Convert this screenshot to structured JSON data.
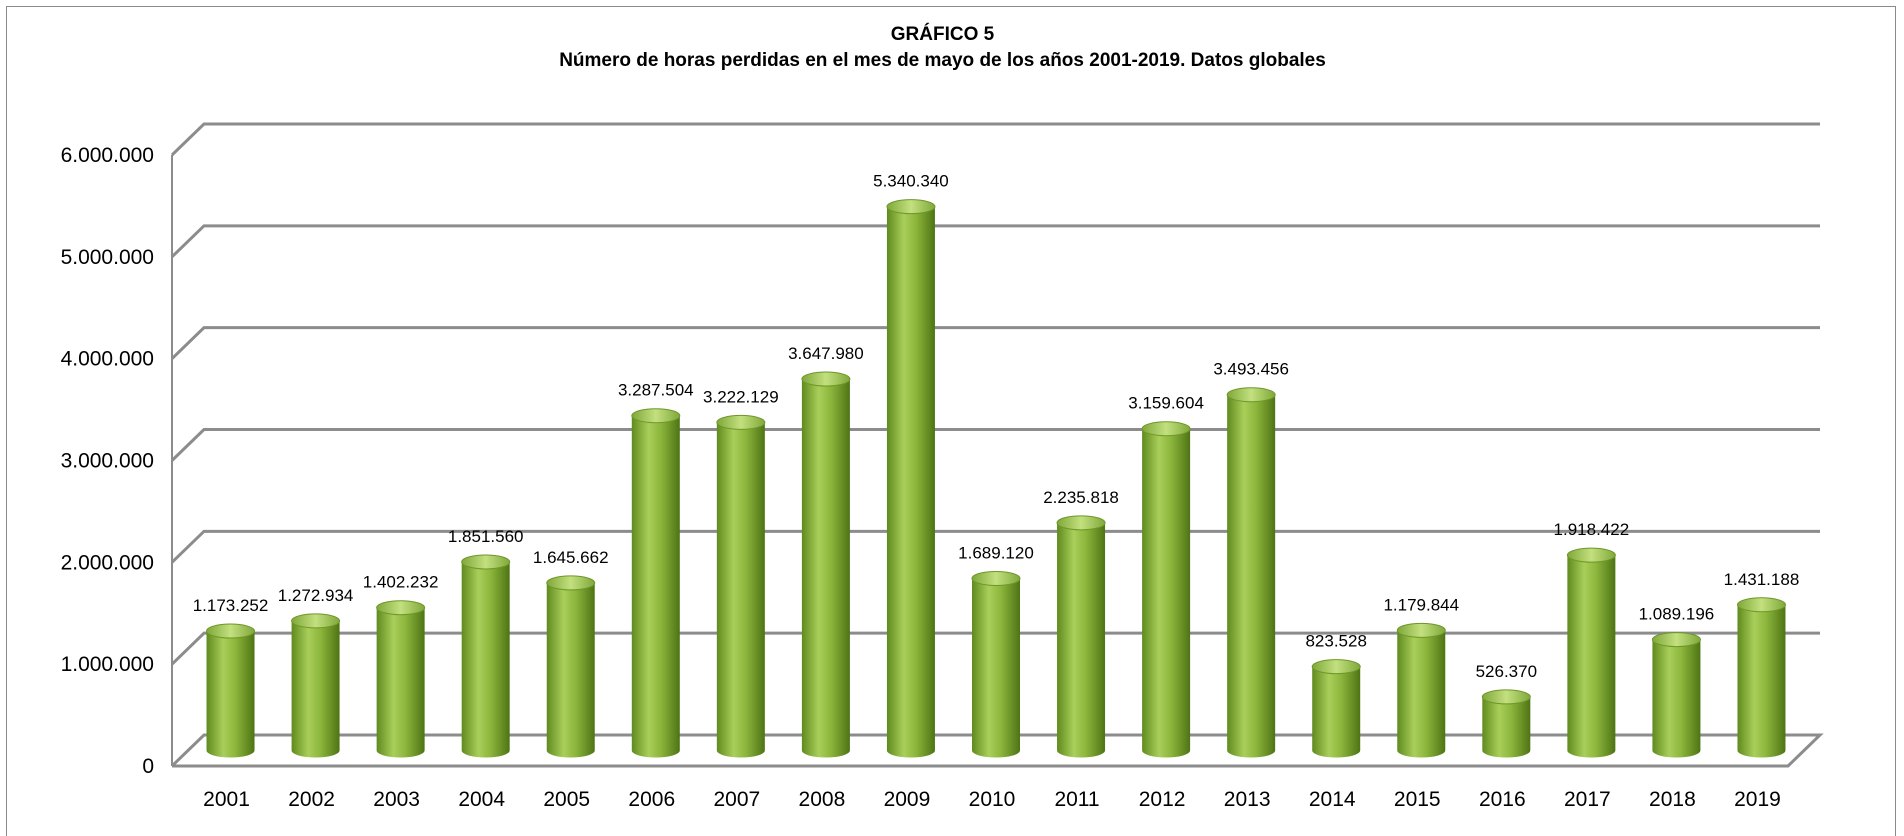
{
  "chart_data": {
    "type": "bar",
    "title": "GRÁFICO 5",
    "subtitle": "Número de horas  perdidas en el mes de mayo de los años 2001-2019.  Datos globales",
    "xlabel": "",
    "ylabel": "",
    "ylim": [
      0,
      6000000
    ],
    "yticks": [
      0,
      1000000,
      2000000,
      3000000,
      4000000,
      5000000,
      6000000
    ],
    "ytick_labels": [
      "0",
      "1.000.000",
      "2.000.000",
      "3.000.000",
      "4.000.000",
      "5.000.000",
      "6.000.000"
    ],
    "grid": true,
    "legend": "none",
    "bar_color": "#8cb63c",
    "categories": [
      "2001",
      "2002",
      "2003",
      "2004",
      "2005",
      "2006",
      "2007",
      "2008",
      "2009",
      "2010",
      "2011",
      "2012",
      "2013",
      "2014",
      "2015",
      "2016",
      "2017",
      "2018",
      "2019"
    ],
    "values": [
      1173252,
      1272934,
      1402232,
      1851560,
      1645662,
      3287504,
      3222129,
      3647980,
      5340340,
      1689120,
      2235818,
      3159604,
      3493456,
      823528,
      1179844,
      526370,
      1918422,
      1089196,
      1431188
    ],
    "data_labels": [
      "1.173.252",
      "1.272.934",
      "1.402.232",
      "1.851.560",
      "1.645.662",
      "3.287.504",
      "3.222.129",
      "3.647.980",
      "5.340.340",
      "1.689.120",
      "2.235.818",
      "3.159.604",
      "3.493.456",
      "823.528",
      "1.179.844",
      "526.370",
      "1.918.422",
      "1.089.196",
      "1.431.188"
    ]
  }
}
